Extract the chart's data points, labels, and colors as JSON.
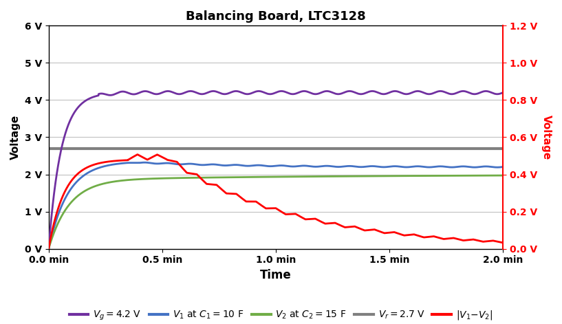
{
  "title": "Balancing Board, LTC3128",
  "xlabel": "Time",
  "ylabel_left": "Voltage",
  "ylabel_right": "Voltage",
  "xlim": [
    0.0,
    2.0
  ],
  "ylim_left": [
    0,
    6
  ],
  "ylim_right": [
    0.0,
    1.2
  ],
  "xticks": [
    0.0,
    0.5,
    1.0,
    1.5,
    2.0
  ],
  "yticks_left": [
    0,
    1,
    2,
    3,
    4,
    5,
    6
  ],
  "yticks_right": [
    0.0,
    0.2,
    0.4,
    0.6,
    0.8,
    1.0,
    1.2
  ],
  "xticklabels": [
    "0.0 min",
    "0.5 min",
    "1.0 min",
    "1.5 min",
    "2.0 min"
  ],
  "yticklabels_left": [
    "0 V",
    "1 V",
    "2 V",
    "3 V",
    "4 V",
    "5 V",
    "6 V"
  ],
  "yticklabels_right": [
    "0.0 V",
    "0.2 V",
    "0.4 V",
    "0.6 V",
    "0.8 V",
    "1.0 V",
    "1.2 V"
  ],
  "vr_value": 2.7,
  "vg_value": 4.2,
  "color_vg": "#7030A0",
  "color_v1": "#4472C4",
  "color_v2": "#70AD47",
  "color_vr": "#808080",
  "color_vdiff": "#FF0000",
  "bg_color": "#FFFFFF",
  "grid_color": "#C0C0C0",
  "linewidth": 2.0,
  "title_fontsize": 13,
  "label_fontsize": 11,
  "tick_fontsize": 10,
  "legend_fontsize": 10
}
